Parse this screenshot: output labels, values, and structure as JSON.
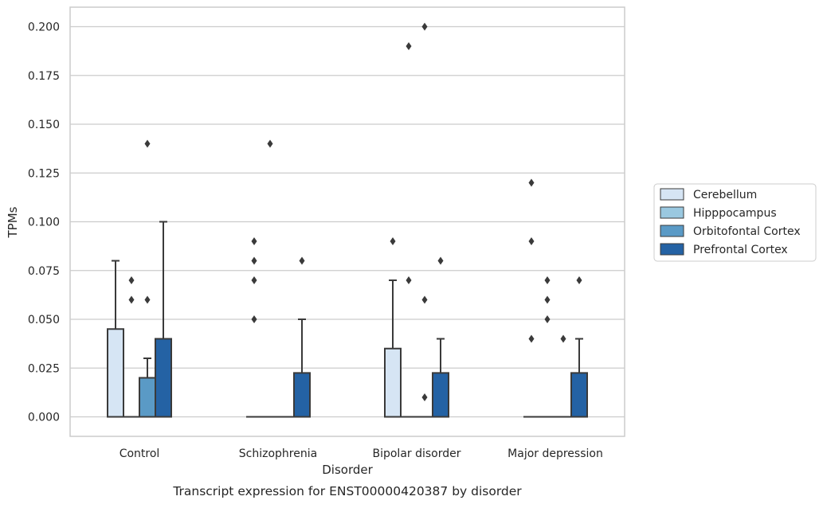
{
  "chart_data": {
    "type": "box",
    "title": "Transcript expression for ENST00000420387 by disorder",
    "xlabel": "Disorder",
    "ylabel": "TPMs",
    "ylim": [
      -0.01,
      0.21
    ],
    "yticks": [
      "0.000",
      "0.025",
      "0.050",
      "0.075",
      "0.100",
      "0.125",
      "0.150",
      "0.175",
      "0.200"
    ],
    "grid": true,
    "legend_position": "right",
    "categories": [
      "Control",
      "Schizophrenia",
      "Bipolar disorder",
      "Major depression"
    ],
    "series": [
      {
        "name": "Cerebellum",
        "color": "#d6e5f4",
        "boxes": [
          {
            "q1": 0.0,
            "median": 0.0,
            "q3": 0.045,
            "whisker_low": 0.0,
            "whisker_high": 0.08,
            "outliers": []
          },
          {
            "q1": 0.0,
            "median": 0.0,
            "q3": 0.0,
            "whisker_low": 0.0,
            "whisker_high": 0.0,
            "outliers": [
              0.05,
              0.07,
              0.08,
              0.09
            ]
          },
          {
            "q1": 0.0,
            "median": 0.0,
            "q3": 0.035,
            "whisker_low": 0.0,
            "whisker_high": 0.07,
            "outliers": [
              0.09
            ]
          },
          {
            "q1": 0.0,
            "median": 0.0,
            "q3": 0.0,
            "whisker_low": 0.0,
            "whisker_high": 0.0,
            "outliers": [
              0.04,
              0.09,
              0.12
            ]
          }
        ]
      },
      {
        "name": "Hipppocampus",
        "color": "#9ac8e0",
        "boxes": [
          {
            "q1": 0.0,
            "median": 0.0,
            "q3": 0.0,
            "whisker_low": 0.0,
            "whisker_high": 0.0,
            "outliers": [
              0.06,
              0.07
            ]
          },
          {
            "q1": 0.0,
            "median": 0.0,
            "q3": 0.0,
            "whisker_low": 0.0,
            "whisker_high": 0.0,
            "outliers": [
              0.14
            ]
          },
          {
            "q1": 0.0,
            "median": 0.0,
            "q3": 0.0,
            "whisker_low": 0.0,
            "whisker_high": 0.0,
            "outliers": [
              0.07,
              0.19
            ]
          },
          {
            "q1": 0.0,
            "median": 0.0,
            "q3": 0.0,
            "whisker_low": 0.0,
            "whisker_high": 0.0,
            "outliers": [
              0.05,
              0.06,
              0.07
            ]
          }
        ]
      },
      {
        "name": "Orbitofontal Cortex",
        "color": "#5a9ac6",
        "boxes": [
          {
            "q1": 0.0,
            "median": 0.0,
            "q3": 0.02,
            "whisker_low": 0.0,
            "whisker_high": 0.03,
            "outliers": [
              0.06,
              0.14
            ]
          },
          {
            "q1": 0.0,
            "median": 0.0,
            "q3": 0.0,
            "whisker_low": 0.0,
            "whisker_high": 0.0,
            "outliers": []
          },
          {
            "q1": 0.0,
            "median": 0.0,
            "q3": 0.0,
            "whisker_low": 0.0,
            "whisker_high": 0.0,
            "outliers": [
              0.01,
              0.06,
              0.2
            ]
          },
          {
            "q1": 0.0,
            "median": 0.0,
            "q3": 0.0,
            "whisker_low": 0.0,
            "whisker_high": 0.0,
            "outliers": [
              0.04
            ]
          }
        ]
      },
      {
        "name": "Prefrontal Cortex",
        "color": "#2462a4",
        "boxes": [
          {
            "q1": 0.0,
            "median": 0.0,
            "q3": 0.04,
            "whisker_low": 0.0,
            "whisker_high": 0.1,
            "outliers": []
          },
          {
            "q1": 0.0,
            "median": 0.0,
            "q3": 0.0225,
            "whisker_low": 0.0,
            "whisker_high": 0.05,
            "outliers": [
              0.08
            ]
          },
          {
            "q1": 0.0,
            "median": 0.0,
            "q3": 0.0225,
            "whisker_low": 0.0,
            "whisker_high": 0.04,
            "outliers": [
              0.08
            ]
          },
          {
            "q1": 0.0,
            "median": 0.0,
            "q3": 0.0225,
            "whisker_low": 0.0,
            "whisker_high": 0.04,
            "outliers": [
              0.07
            ]
          }
        ]
      }
    ]
  }
}
